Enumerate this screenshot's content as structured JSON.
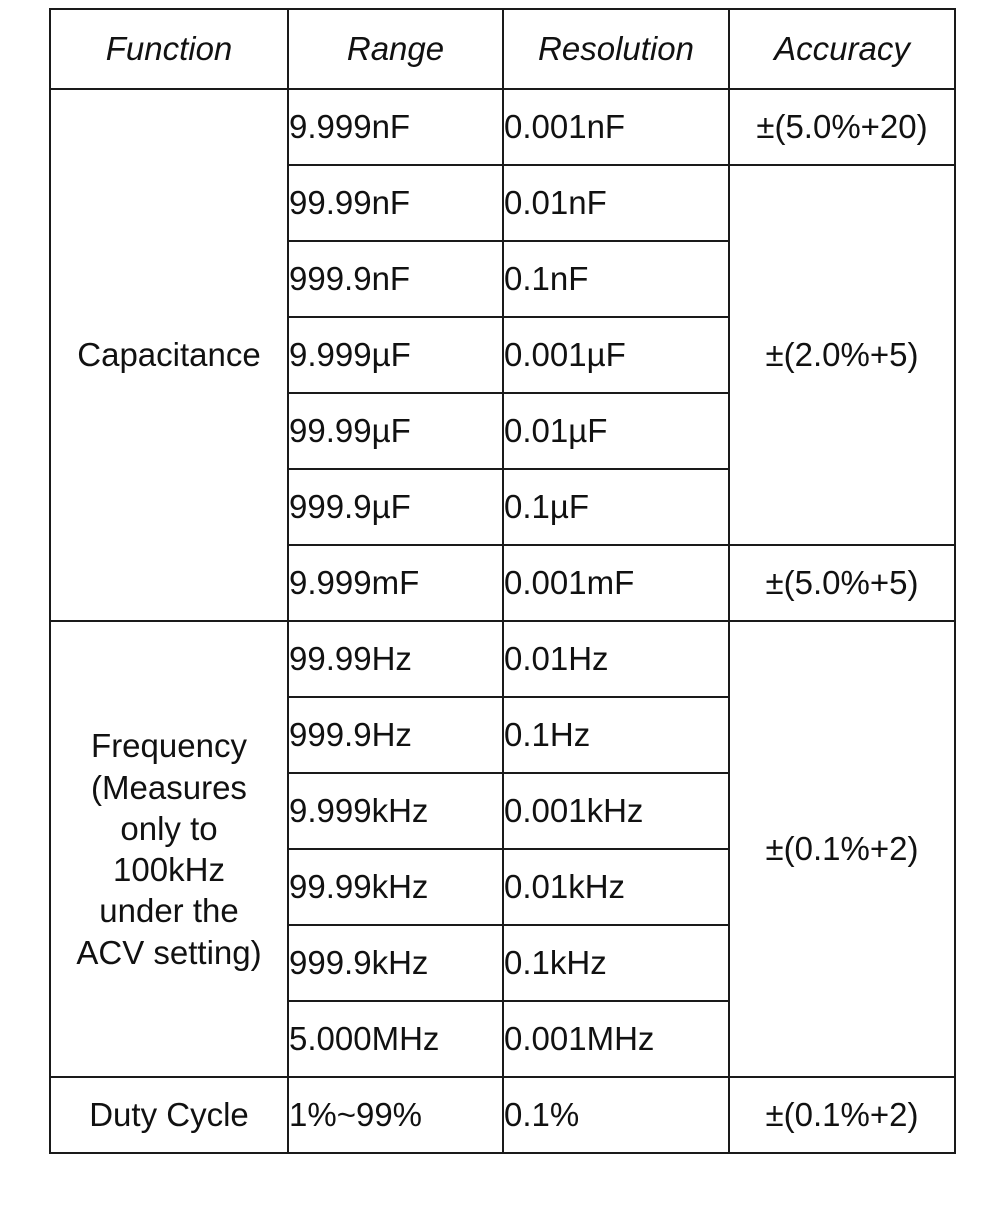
{
  "headers": {
    "function": "Function",
    "range": "Range",
    "resolution": "Resolution",
    "accuracy": "Accuracy"
  },
  "capacitance": {
    "label": "Capacitance",
    "rows": [
      {
        "range": "9.999nF",
        "resolution": "0.001nF"
      },
      {
        "range": "99.99nF",
        "resolution": "0.01nF"
      },
      {
        "range": "999.9nF",
        "resolution": "0.1nF"
      },
      {
        "range": "9.999µF",
        "resolution": "0.001µF"
      },
      {
        "range": "99.99µF",
        "resolution": "0.01µF"
      },
      {
        "range": "999.9µF",
        "resolution": "0.1µF"
      },
      {
        "range": "9.999mF",
        "resolution": "0.001mF"
      }
    ],
    "accuracy": [
      "±(5.0%+20)",
      "±(2.0%+5)",
      "±(5.0%+5)"
    ]
  },
  "frequency": {
    "label": "Frequency\n(Measures\nonly to\n100kHz\nunder the\nACV setting)",
    "rows": [
      {
        "range": "99.99Hz",
        "resolution": "0.01Hz"
      },
      {
        "range": "999.9Hz",
        "resolution": "0.1Hz"
      },
      {
        "range": "9.999kHz",
        "resolution": "0.001kHz"
      },
      {
        "range": "99.99kHz",
        "resolution": "0.01kHz"
      },
      {
        "range": "999.9kHz",
        "resolution": "0.1kHz"
      },
      {
        "range": "5.000MHz",
        "resolution": "0.001MHz"
      }
    ],
    "accuracy": "±(0.1%+2)"
  },
  "duty_cycle": {
    "label": "Duty Cycle",
    "range": "1%~99%",
    "resolution": "0.1%",
    "accuracy": "±(0.1%+2)"
  }
}
